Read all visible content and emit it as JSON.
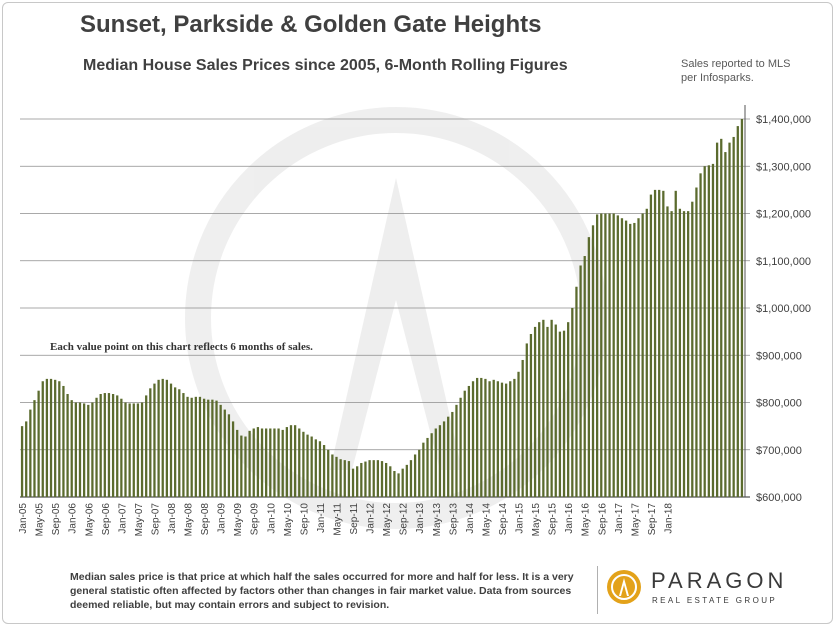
{
  "header": {
    "title": "Sunset, Parkside & Golden Gate Heights",
    "subtitle": "Median House Sales Prices since 2005, 6-Month Rolling Figures",
    "source_line1": "Sales reported to MLS",
    "source_line2": "per Infosparks."
  },
  "annotation": "Each value point on this chart reflects 6 months of sales.",
  "footer": {
    "note": "Median sales price is that price at which half the sales occurred for more and half for less. It is a very general statistic often affected by factors other than changes in fair market value. Data from sources deemed reliable, but may contain errors and subject to revision."
  },
  "logo": {
    "name": "PARAGON",
    "tagline": "REAL ESTATE GROUP"
  },
  "colors": {
    "bar": "#5b6b2e",
    "grid": "#8c8c8c",
    "text": "#404040",
    "logo_accent": "#e3a21a"
  },
  "chart_data": {
    "type": "bar",
    "title": "Median House Sales Prices since 2005, 6-Month Rolling Figures",
    "start_month": "Jan-05",
    "month_step": 1,
    "x_tick_labels": [
      "Jan-05",
      "May-05",
      "Sep-05",
      "Jan-06",
      "May-06",
      "Sep-06",
      "Jan-07",
      "May-07",
      "Sep-07",
      "Jan-08",
      "May-08",
      "Sep-08",
      "Jan-09",
      "May-09",
      "Sep-09",
      "Jan-10",
      "May-10",
      "Sep-10",
      "Jan-11",
      "May-11",
      "Sep-11",
      "Jan-12",
      "May-12",
      "Sep-12",
      "Jan-13",
      "May-13",
      "Sep-13",
      "Jan-14",
      "May-14",
      "Sep-14",
      "Jan-15",
      "May-15",
      "Sep-15",
      "Jan-16",
      "May-16",
      "Sep-16",
      "Jan-17",
      "May-17",
      "Sep-17",
      "Jan-18"
    ],
    "y_ticks": [
      "$600,000",
      "$700,000",
      "$800,000",
      "$900,000",
      "$1,000,000",
      "$1,100,000",
      "$1,200,000",
      "$1,300,000",
      "$1,400,000"
    ],
    "ylim": [
      600000,
      1400000
    ],
    "axis_side": "right",
    "grid": true,
    "values": [
      750000,
      760000,
      785000,
      805000,
      825000,
      845000,
      850000,
      850000,
      848000,
      845000,
      835000,
      818000,
      805000,
      800000,
      800000,
      798000,
      795000,
      800000,
      810000,
      818000,
      820000,
      820000,
      818000,
      815000,
      808000,
      800000,
      798000,
      798000,
      798000,
      800000,
      815000,
      830000,
      840000,
      848000,
      850000,
      848000,
      840000,
      832000,
      828000,
      820000,
      812000,
      810000,
      812000,
      812000,
      808000,
      806000,
      806000,
      804000,
      795000,
      785000,
      775000,
      760000,
      742000,
      730000,
      728000,
      740000,
      745000,
      748000,
      745000,
      745000,
      745000,
      745000,
      745000,
      742000,
      748000,
      752000,
      752000,
      745000,
      738000,
      732000,
      728000,
      722000,
      718000,
      710000,
      700000,
      690000,
      685000,
      680000,
      678000,
      676000,
      660000,
      665000,
      672000,
      675000,
      678000,
      678000,
      678000,
      676000,
      672000,
      665000,
      655000,
      650000,
      660000,
      668000,
      678000,
      690000,
      700000,
      715000,
      725000,
      735000,
      745000,
      752000,
      760000,
      770000,
      780000,
      795000,
      810000,
      825000,
      835000,
      845000,
      852000,
      852000,
      850000,
      845000,
      848000,
      845000,
      842000,
      840000,
      845000,
      850000,
      865000,
      890000,
      925000,
      945000,
      960000,
      970000,
      975000,
      960000,
      975000,
      965000,
      950000,
      952000,
      970000,
      1000000,
      1045000,
      1090000,
      1110000,
      1150000,
      1175000,
      1198000,
      1200000,
      1200000,
      1200000,
      1200000,
      1196000,
      1190000,
      1185000,
      1178000,
      1180000,
      1190000,
      1200000,
      1210000,
      1240000,
      1250000,
      1250000,
      1248000,
      1215000,
      1205000,
      1248000,
      1210000,
      1205000,
      1205000,
      1225000,
      1255000,
      1285000,
      1300000,
      1302000,
      1305000,
      1350000,
      1358000,
      1330000,
      1350000,
      1362000,
      1385000,
      1400000
    ]
  }
}
